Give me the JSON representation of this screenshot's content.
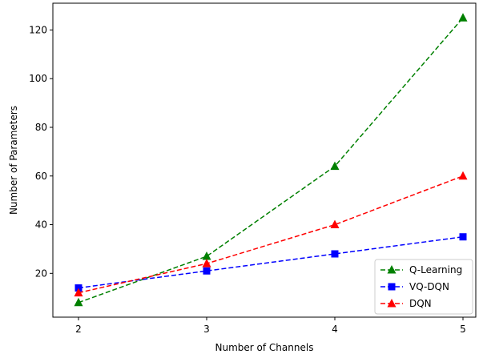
{
  "chart_data": {
    "type": "line",
    "xlabel": "Number of Channels",
    "ylabel": "Number of Parameters",
    "x": [
      2,
      3,
      4,
      5
    ],
    "xlim": [
      1.8,
      5.1
    ],
    "ylim": [
      2,
      131
    ],
    "xticks": [
      2,
      3,
      4,
      5
    ],
    "yticks": [
      20,
      40,
      60,
      80,
      100,
      120
    ],
    "grid": false,
    "legend_position": "bottom-right",
    "series": [
      {
        "name": "Q-Learning",
        "values": [
          8,
          27,
          64,
          125
        ],
        "color": "#008000",
        "marker": "triangle",
        "linestyle": "dashed"
      },
      {
        "name": "VQ-DQN",
        "values": [
          14,
          21,
          28,
          35
        ],
        "color": "#0000ff",
        "marker": "square",
        "linestyle": "dashed"
      },
      {
        "name": "DQN",
        "values": [
          12,
          24,
          40,
          60
        ],
        "color": "#ff0000",
        "marker": "triangle",
        "linestyle": "dashed"
      }
    ]
  }
}
